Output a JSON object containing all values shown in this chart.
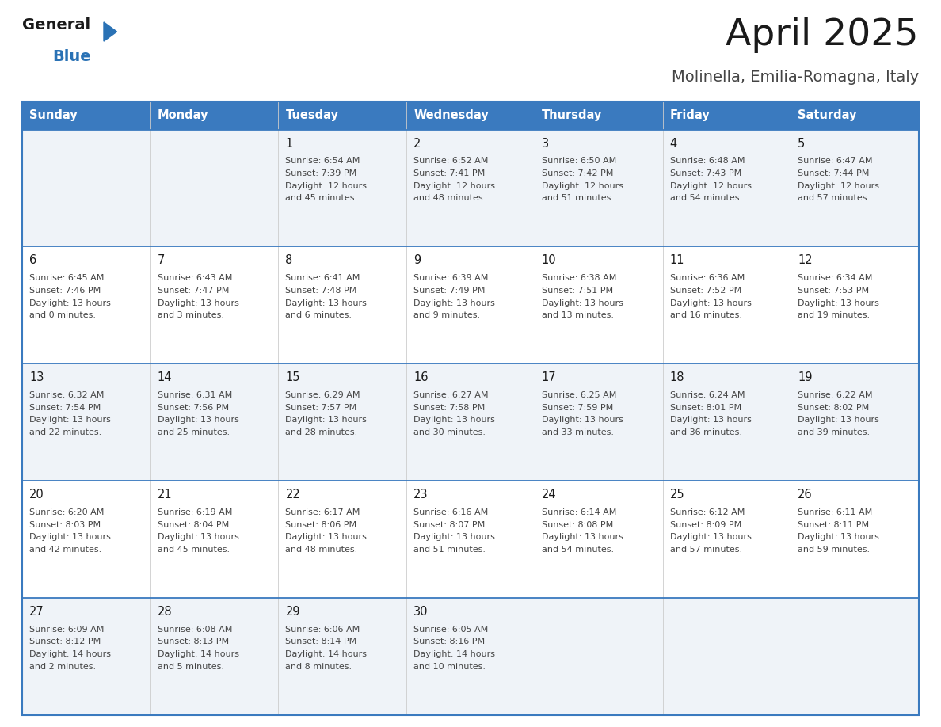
{
  "title": "April 2025",
  "subtitle": "Molinella, Emilia-Romagna, Italy",
  "header_bg_color": "#3a7abf",
  "header_text_color": "#ffffff",
  "row_bg_colors": [
    "#eff3f8",
    "#ffffff",
    "#eff3f8",
    "#ffffff",
    "#eff3f8"
  ],
  "border_color": "#3a7abf",
  "day_headers": [
    "Sunday",
    "Monday",
    "Tuesday",
    "Wednesday",
    "Thursday",
    "Friday",
    "Saturday"
  ],
  "title_color": "#1a1a1a",
  "subtitle_color": "#444444",
  "day_num_color": "#1a1a1a",
  "cell_text_color": "#444444",
  "logo_general_color": "#1a1a1a",
  "logo_blue_color": "#2a72b5",
  "logo_triangle_color": "#2a72b5",
  "calendar_data": [
    [
      {
        "day": "",
        "lines": []
      },
      {
        "day": "",
        "lines": []
      },
      {
        "day": "1",
        "lines": [
          "Sunrise: 6:54 AM",
          "Sunset: 7:39 PM",
          "Daylight: 12 hours",
          "and 45 minutes."
        ]
      },
      {
        "day": "2",
        "lines": [
          "Sunrise: 6:52 AM",
          "Sunset: 7:41 PM",
          "Daylight: 12 hours",
          "and 48 minutes."
        ]
      },
      {
        "day": "3",
        "lines": [
          "Sunrise: 6:50 AM",
          "Sunset: 7:42 PM",
          "Daylight: 12 hours",
          "and 51 minutes."
        ]
      },
      {
        "day": "4",
        "lines": [
          "Sunrise: 6:48 AM",
          "Sunset: 7:43 PM",
          "Daylight: 12 hours",
          "and 54 minutes."
        ]
      },
      {
        "day": "5",
        "lines": [
          "Sunrise: 6:47 AM",
          "Sunset: 7:44 PM",
          "Daylight: 12 hours",
          "and 57 minutes."
        ]
      }
    ],
    [
      {
        "day": "6",
        "lines": [
          "Sunrise: 6:45 AM",
          "Sunset: 7:46 PM",
          "Daylight: 13 hours",
          "and 0 minutes."
        ]
      },
      {
        "day": "7",
        "lines": [
          "Sunrise: 6:43 AM",
          "Sunset: 7:47 PM",
          "Daylight: 13 hours",
          "and 3 minutes."
        ]
      },
      {
        "day": "8",
        "lines": [
          "Sunrise: 6:41 AM",
          "Sunset: 7:48 PM",
          "Daylight: 13 hours",
          "and 6 minutes."
        ]
      },
      {
        "day": "9",
        "lines": [
          "Sunrise: 6:39 AM",
          "Sunset: 7:49 PM",
          "Daylight: 13 hours",
          "and 9 minutes."
        ]
      },
      {
        "day": "10",
        "lines": [
          "Sunrise: 6:38 AM",
          "Sunset: 7:51 PM",
          "Daylight: 13 hours",
          "and 13 minutes."
        ]
      },
      {
        "day": "11",
        "lines": [
          "Sunrise: 6:36 AM",
          "Sunset: 7:52 PM",
          "Daylight: 13 hours",
          "and 16 minutes."
        ]
      },
      {
        "day": "12",
        "lines": [
          "Sunrise: 6:34 AM",
          "Sunset: 7:53 PM",
          "Daylight: 13 hours",
          "and 19 minutes."
        ]
      }
    ],
    [
      {
        "day": "13",
        "lines": [
          "Sunrise: 6:32 AM",
          "Sunset: 7:54 PM",
          "Daylight: 13 hours",
          "and 22 minutes."
        ]
      },
      {
        "day": "14",
        "lines": [
          "Sunrise: 6:31 AM",
          "Sunset: 7:56 PM",
          "Daylight: 13 hours",
          "and 25 minutes."
        ]
      },
      {
        "day": "15",
        "lines": [
          "Sunrise: 6:29 AM",
          "Sunset: 7:57 PM",
          "Daylight: 13 hours",
          "and 28 minutes."
        ]
      },
      {
        "day": "16",
        "lines": [
          "Sunrise: 6:27 AM",
          "Sunset: 7:58 PM",
          "Daylight: 13 hours",
          "and 30 minutes."
        ]
      },
      {
        "day": "17",
        "lines": [
          "Sunrise: 6:25 AM",
          "Sunset: 7:59 PM",
          "Daylight: 13 hours",
          "and 33 minutes."
        ]
      },
      {
        "day": "18",
        "lines": [
          "Sunrise: 6:24 AM",
          "Sunset: 8:01 PM",
          "Daylight: 13 hours",
          "and 36 minutes."
        ]
      },
      {
        "day": "19",
        "lines": [
          "Sunrise: 6:22 AM",
          "Sunset: 8:02 PM",
          "Daylight: 13 hours",
          "and 39 minutes."
        ]
      }
    ],
    [
      {
        "day": "20",
        "lines": [
          "Sunrise: 6:20 AM",
          "Sunset: 8:03 PM",
          "Daylight: 13 hours",
          "and 42 minutes."
        ]
      },
      {
        "day": "21",
        "lines": [
          "Sunrise: 6:19 AM",
          "Sunset: 8:04 PM",
          "Daylight: 13 hours",
          "and 45 minutes."
        ]
      },
      {
        "day": "22",
        "lines": [
          "Sunrise: 6:17 AM",
          "Sunset: 8:06 PM",
          "Daylight: 13 hours",
          "and 48 minutes."
        ]
      },
      {
        "day": "23",
        "lines": [
          "Sunrise: 6:16 AM",
          "Sunset: 8:07 PM",
          "Daylight: 13 hours",
          "and 51 minutes."
        ]
      },
      {
        "day": "24",
        "lines": [
          "Sunrise: 6:14 AM",
          "Sunset: 8:08 PM",
          "Daylight: 13 hours",
          "and 54 minutes."
        ]
      },
      {
        "day": "25",
        "lines": [
          "Sunrise: 6:12 AM",
          "Sunset: 8:09 PM",
          "Daylight: 13 hours",
          "and 57 minutes."
        ]
      },
      {
        "day": "26",
        "lines": [
          "Sunrise: 6:11 AM",
          "Sunset: 8:11 PM",
          "Daylight: 13 hours",
          "and 59 minutes."
        ]
      }
    ],
    [
      {
        "day": "27",
        "lines": [
          "Sunrise: 6:09 AM",
          "Sunset: 8:12 PM",
          "Daylight: 14 hours",
          "and 2 minutes."
        ]
      },
      {
        "day": "28",
        "lines": [
          "Sunrise: 6:08 AM",
          "Sunset: 8:13 PM",
          "Daylight: 14 hours",
          "and 5 minutes."
        ]
      },
      {
        "day": "29",
        "lines": [
          "Sunrise: 6:06 AM",
          "Sunset: 8:14 PM",
          "Daylight: 14 hours",
          "and 8 minutes."
        ]
      },
      {
        "day": "30",
        "lines": [
          "Sunrise: 6:05 AM",
          "Sunset: 8:16 PM",
          "Daylight: 14 hours",
          "and 10 minutes."
        ]
      },
      {
        "day": "",
        "lines": []
      },
      {
        "day": "",
        "lines": []
      },
      {
        "day": "",
        "lines": []
      }
    ]
  ]
}
